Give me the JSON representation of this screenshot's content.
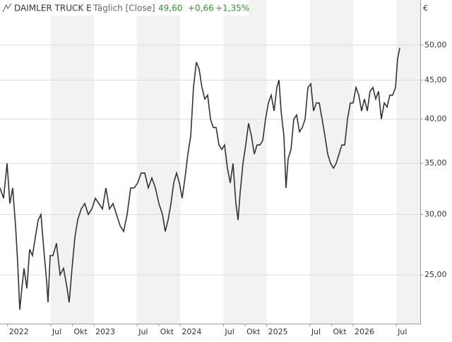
{
  "chart_data": {
    "type": "line",
    "title": "DAIMLER TRUCK E",
    "subtitle": "Täglich [Close]",
    "last_value": "49,60",
    "change": "+0,66",
    "change_percent": "+1,35%",
    "y_unit": "€",
    "log_y": true,
    "grid": true,
    "xlim": [
      2021.912,
      2026.777
    ],
    "ylim": [
      21.58,
      57.3
    ],
    "xticks": [
      2022,
      {
        "value": 2022.5,
        "label": "Jul"
      },
      {
        "value": 2022.75,
        "label": "Okt"
      },
      2023,
      {
        "value": 2023.5,
        "label": "Jul"
      },
      {
        "value": 2023.75,
        "label": "Okt"
      },
      2024,
      {
        "value": 2024.5,
        "label": "Jul"
      },
      {
        "value": 2024.75,
        "label": "Okt"
      },
      2025,
      {
        "value": 2025.5,
        "label": "Jul"
      },
      {
        "value": 2025.75,
        "label": "Okt"
      },
      2026,
      {
        "value": 2026.5,
        "label": "Jul"
      }
    ],
    "yticks": [
      {
        "value": 25,
        "label": "25,00"
      },
      {
        "value": 30,
        "label": "30,00"
      },
      {
        "value": 35,
        "label": "35,00"
      },
      {
        "value": 40,
        "label": "40,00"
      },
      {
        "value": 45,
        "label": "45,00"
      },
      {
        "value": 50,
        "label": "50,00"
      }
    ],
    "x": [
      2021.912,
      2021.953,
      2021.994,
      2022.026,
      2022.059,
      2022.092,
      2022.116,
      2022.141,
      2022.165,
      2022.19,
      2022.223,
      2022.255,
      2022.288,
      2022.321,
      2022.354,
      2022.386,
      2022.419,
      2022.452,
      2022.468,
      2022.493,
      2022.525,
      2022.566,
      2022.607,
      2022.648,
      2022.689,
      2022.713,
      2022.746,
      2022.779,
      2022.811,
      2022.852,
      2022.893,
      2022.934,
      2022.975,
      2023.016,
      2023.057,
      2023.098,
      2023.138,
      2023.179,
      2023.22,
      2023.261,
      2023.302,
      2023.343,
      2023.384,
      2023.425,
      2023.466,
      2023.506,
      2023.547,
      2023.588,
      2023.629,
      2023.67,
      2023.711,
      2023.752,
      2023.793,
      2023.825,
      2023.858,
      2023.891,
      2023.923,
      2023.956,
      2023.989,
      2024.021,
      2024.054,
      2024.087,
      2024.12,
      2024.152,
      2024.185,
      2024.218,
      2024.25,
      2024.283,
      2024.316,
      2024.349,
      2024.381,
      2024.414,
      2024.447,
      2024.48,
      2024.512,
      2024.545,
      2024.578,
      2024.61,
      2024.643,
      2024.668,
      2024.692,
      2024.725,
      2024.757,
      2024.79,
      2024.823,
      2024.856,
      2024.888,
      2024.921,
      2024.954,
      2024.986,
      2025.019,
      2025.052,
      2025.085,
      2025.117,
      2025.142,
      2025.166,
      2025.199,
      2025.223,
      2025.248,
      2025.281,
      2025.313,
      2025.346,
      2025.379,
      2025.412,
      2025.444,
      2025.477,
      2025.51,
      2025.542,
      2025.575,
      2025.608,
      2025.641,
      2025.674,
      2025.706,
      2025.739,
      2025.772,
      2025.804,
      2025.837,
      2025.87,
      2025.903,
      2025.935,
      2025.968,
      2026.0,
      2026.033,
      2026.066,
      2026.098,
      2026.131,
      2026.164,
      2026.196,
      2026.229,
      2026.262,
      2026.294,
      2026.327,
      2026.36,
      2026.393,
      2026.425,
      2026.458,
      2026.491,
      2026.515,
      2026.54
    ],
    "series": [
      {
        "color": "#333333",
        "values": [
          32.5,
          31.5,
          35,
          31,
          32.5,
          29,
          26,
          22.5,
          24,
          25.5,
          24,
          27,
          26.5,
          28,
          29.5,
          30,
          27,
          24.5,
          23,
          26.5,
          26.5,
          27.5,
          25,
          25.5,
          24,
          23,
          25.5,
          28,
          29.5,
          30.5,
          31,
          30,
          30.5,
          31.5,
          31,
          30.5,
          32.5,
          30.5,
          31,
          30,
          29,
          28.5,
          30,
          32.5,
          32.5,
          33,
          34,
          34,
          32.5,
          33.5,
          32.5,
          31,
          30,
          28.5,
          29.5,
          31,
          33,
          34,
          33,
          31.5,
          33.5,
          36,
          38,
          44,
          47.5,
          46.5,
          44,
          42.5,
          43,
          40,
          39,
          39,
          37,
          36.5,
          37,
          34.5,
          33,
          35,
          31,
          29.5,
          32,
          35,
          37,
          39.5,
          38,
          36,
          37,
          37,
          37.5,
          40,
          42,
          43,
          41,
          44,
          45,
          41,
          38,
          32.5,
          35.5,
          36.5,
          40,
          40.5,
          38.5,
          39,
          40,
          44,
          44.5,
          41,
          42,
          42,
          40,
          38,
          36,
          35,
          34.5,
          35,
          36,
          37,
          37,
          40,
          42,
          42,
          44,
          43,
          41,
          42.5,
          41,
          43.5,
          44,
          42.5,
          43.5,
          40,
          42,
          41.5,
          43,
          43,
          44,
          48,
          49.6
        ]
      }
    ]
  }
}
